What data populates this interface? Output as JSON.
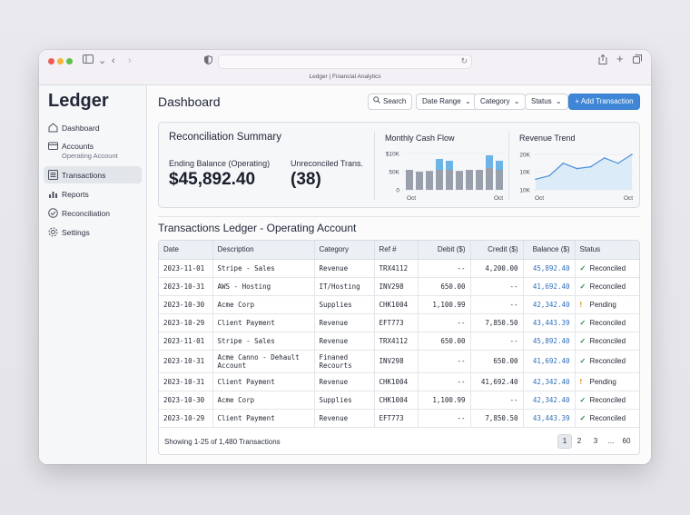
{
  "window": {
    "tab_title": "Ledger | Financial Analytics"
  },
  "sidebar": {
    "brand": "Ledger",
    "items": [
      {
        "label": "Dashboard"
      },
      {
        "label": "Accounts",
        "sublabel": "Operating Account"
      },
      {
        "label": "Transactions",
        "active": true
      },
      {
        "label": "Reports"
      },
      {
        "label": "Reconciliation"
      },
      {
        "label": "Settings"
      }
    ]
  },
  "header": {
    "title": "Dashboard",
    "search_label": "Search",
    "date_range_label": "Date Range",
    "category_label": "Category",
    "status_label": "Status",
    "add_label": "+ Add Transaction"
  },
  "summary": {
    "title": "Reconciliation Summary",
    "ending_balance_label": "Ending Balance (Operating)",
    "ending_balance_value": "$45,892.40",
    "unreconciled_label": "Unreconciled Trans.",
    "unreconciled_value": "(38)"
  },
  "cashflow": {
    "title": "Monthly Cash Flow",
    "y_ticks": [
      "$10K",
      "50K",
      "0"
    ],
    "x_ticks": [
      "Oct",
      "Oct"
    ],
    "bars": [
      {
        "base": 0.55,
        "top": 0.0
      },
      {
        "base": 0.5,
        "top": 0.0
      },
      {
        "base": 0.52,
        "top": 0.0
      },
      {
        "base": 0.55,
        "top": 0.3
      },
      {
        "base": 0.55,
        "top": 0.25
      },
      {
        "base": 0.52,
        "top": 0.0
      },
      {
        "base": 0.55,
        "top": 0.0
      },
      {
        "base": 0.55,
        "top": 0.0
      },
      {
        "base": 0.6,
        "top": 0.35
      },
      {
        "base": 0.55,
        "top": 0.25
      }
    ],
    "colors": {
      "base": "#9aa0ab",
      "top": "#6cb3e6"
    }
  },
  "trend": {
    "title": "Revenue Trend",
    "y_ticks": [
      "20K",
      "10K",
      "10K"
    ],
    "x_ticks": [
      "Oct",
      "Oct"
    ],
    "values": [
      0.3,
      0.4,
      0.75,
      0.6,
      0.65,
      0.9,
      0.75,
      1.0
    ],
    "color": "#4a90d9"
  },
  "ledger": {
    "title": "Transactions Ledger - Operating Account",
    "columns": [
      "Date",
      "Description",
      "Category",
      "Ref #",
      "Debit ($)",
      "Credit ($)",
      "Balance ($)",
      "Status"
    ],
    "rows": [
      {
        "date": "2023-11-01",
        "desc": "Stripe - Sales",
        "cat": "Revenue",
        "ref": "TRX4112",
        "debit": "--",
        "credit": "4,200.00",
        "balance": "45,892.40",
        "status": "Reconciled",
        "ok": true
      },
      {
        "date": "2023-10-31",
        "desc": "AWS - Hosting",
        "cat": "IT/Hosting",
        "ref": "INV298",
        "debit": "650.00",
        "credit": "--",
        "balance": "41,692.40",
        "status": "Reconciled",
        "ok": true
      },
      {
        "date": "2023-10-30",
        "desc": "Acme Corp",
        "cat": "Supplies",
        "ref": "CHK1004",
        "debit": "1,100.99",
        "credit": "--",
        "balance": "42,342.40",
        "status": "Pending",
        "ok": false
      },
      {
        "date": "2023-10-29",
        "desc": "Client Payment",
        "cat": "Revenue",
        "ref": "EFT773",
        "debit": "--",
        "credit": "7,850.50",
        "balance": "43,443.39",
        "status": "Reconciled",
        "ok": true
      },
      {
        "date": "2023-11-01",
        "desc": "Stripe - Sales",
        "cat": "Revenue",
        "ref": "TRX4112",
        "debit": "650.00",
        "credit": "--",
        "balance": "45,892.40",
        "status": "Reconciled",
        "ok": true
      },
      {
        "date": "2023-10-31",
        "desc": "Acme Canno - Dehault Account",
        "cat": "Finaned Recourts",
        "ref": "INV298",
        "debit": "--",
        "credit": "650.00",
        "balance": "41,692.40",
        "status": "Reconciled",
        "ok": true,
        "tall": true
      },
      {
        "date": "2023-10-31",
        "desc": "Client Payment",
        "cat": "Revenue",
        "ref": "CHK1004",
        "debit": "--",
        "credit": "41,692.40",
        "balance": "42,342.40",
        "status": "Pending",
        "ok": false
      },
      {
        "date": "2023-10-30",
        "desc": "Acme Corp",
        "cat": "Supplies",
        "ref": "CHK1004",
        "debit": "1,100.99",
        "credit": "--",
        "balance": "42,342.40",
        "status": "Reconciled",
        "ok": true
      },
      {
        "date": "2023-10-29",
        "desc": "Client Payment",
        "cat": "Revenue",
        "ref": "EFT773",
        "debit": "--",
        "credit": "7,850.50",
        "balance": "43,443.39",
        "status": "Reconciled",
        "ok": true
      }
    ],
    "footer": "Showing 1-25 of 1,480 Transactions",
    "pages": [
      "1",
      "2",
      "3",
      "...",
      "60"
    ]
  }
}
